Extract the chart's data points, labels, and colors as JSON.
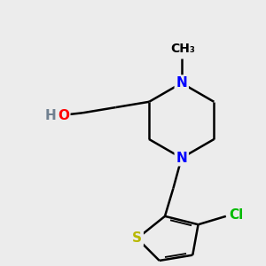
{
  "bg_color": "#ececec",
  "bond_color": "#000000",
  "bond_width": 1.8,
  "N_color": "#0000ff",
  "O_color": "#ff0000",
  "S_color": "#b8b800",
  "Cl_color": "#00bb00",
  "H_color": "#708090",
  "font_size": 11,
  "figsize": [
    3.0,
    3.0
  ],
  "dpi": 100,
  "xlim": [
    -1.5,
    8.0
  ],
  "ylim": [
    -1.0,
    8.5
  ]
}
